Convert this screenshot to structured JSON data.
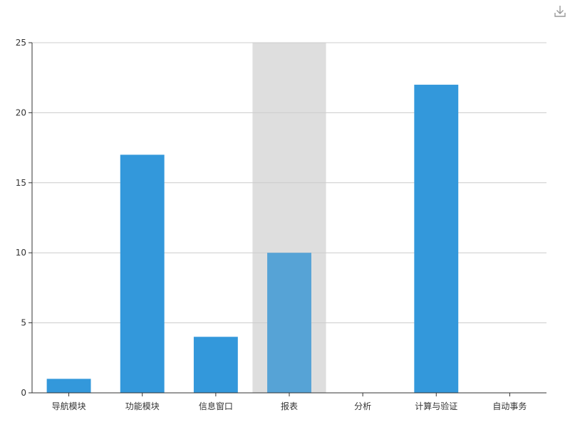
{
  "toolbar": {
    "download_icon": "download-icon"
  },
  "chart_data": {
    "type": "bar",
    "categories": [
      "导航模块",
      "功能模块",
      "信息窗口",
      "报表",
      "分析",
      "计算与验证",
      "自动事务"
    ],
    "values": [
      1,
      17,
      4,
      10,
      0,
      22,
      0
    ],
    "ylim": [
      0,
      25
    ],
    "yticks": [
      0,
      5,
      10,
      15,
      20,
      25
    ],
    "grid": true,
    "highlighted_category": "报表",
    "colors": {
      "bar": "#3398DB",
      "bar_highlight": "#56A3D6",
      "highlight_band": "#DEDEDE",
      "grid": "#CCCCCC",
      "axis": "#333333",
      "text": "#333333"
    }
  }
}
